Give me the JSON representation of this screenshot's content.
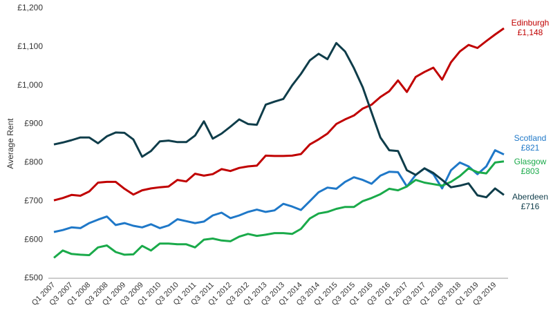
{
  "chart_data": {
    "type": "line",
    "y_axis_label": "Average Rent",
    "categories": [
      "Q1 2007",
      null,
      "Q3 2007",
      null,
      "Q1 2008",
      null,
      "Q3 2008",
      null,
      "Q1 2009",
      null,
      "Q3 2009",
      null,
      "Q1 2010",
      null,
      "Q3 2010",
      null,
      "Q1 2011",
      null,
      "Q3 2011",
      null,
      "Q1 2012",
      null,
      "Q3 2012",
      null,
      "Q1 2013",
      null,
      "Q3 2013",
      null,
      "Q1 2014",
      null,
      "Q3 2014",
      null,
      "Q1 2015",
      null,
      "Q3 2015",
      null,
      "Q1 2016",
      null,
      "Q3 2016",
      null,
      "Q1 2017",
      null,
      "Q3 2017",
      null,
      "Q1 2018",
      null,
      "Q3 2018",
      null,
      "Q1 2019",
      null,
      "Q3 2019",
      null
    ],
    "ylim": [
      500,
      1200
    ],
    "yticks": [
      {
        "value": 500,
        "label": "£500"
      },
      {
        "value": 600,
        "label": "£600"
      },
      {
        "value": 700,
        "label": "£700"
      },
      {
        "value": 800,
        "label": "£800"
      },
      {
        "value": 900,
        "label": "£900"
      },
      {
        "value": 1000,
        "label": "£1,000"
      },
      {
        "value": 1100,
        "label": "£1,100"
      },
      {
        "value": 1200,
        "label": "£1,200"
      }
    ],
    "grid": false,
    "series": [
      {
        "name": "Edinburgh",
        "color": "#c00000",
        "values": [
          702,
          708,
          716,
          714,
          725,
          748,
          750,
          750,
          732,
          717,
          728,
          733,
          736,
          738,
          755,
          751,
          771,
          766,
          770,
          783,
          778,
          786,
          790,
          792,
          818,
          817,
          817,
          818,
          822,
          847,
          860,
          875,
          900,
          912,
          922,
          940,
          950,
          970,
          985,
          1013,
          983,
          1022,
          1035,
          1046,
          1015,
          1060,
          1088,
          1105,
          1097,
          1115,
          1132,
          1148
        ],
        "value_labels": [
          null,
          null,
          null,
          null,
          null,
          null,
          null,
          null,
          null,
          null,
          null,
          null,
          null,
          null,
          null,
          null,
          null,
          null,
          null,
          null,
          null,
          null,
          null,
          null,
          null,
          null,
          null,
          null,
          null,
          null,
          null,
          null,
          null,
          null,
          null,
          null,
          null,
          null,
          null,
          null,
          null,
          null,
          null,
          null,
          null,
          null,
          null,
          null,
          null,
          null,
          null,
          "£1,148"
        ]
      },
      {
        "name": "Scotland",
        "color": "#1f78c8",
        "values": [
          620,
          625,
          632,
          630,
          643,
          652,
          660,
          638,
          643,
          636,
          632,
          640,
          630,
          637,
          653,
          648,
          643,
          647,
          663,
          670,
          656,
          663,
          672,
          678,
          672,
          676,
          693,
          686,
          677,
          700,
          723,
          735,
          732,
          750,
          762,
          755,
          745,
          766,
          776,
          775,
          738,
          768,
          785,
          770,
          733,
          780,
          800,
          790,
          770,
          790,
          832,
          821
        ],
        "value_labels": [
          null,
          null,
          null,
          null,
          null,
          null,
          null,
          null,
          null,
          null,
          null,
          null,
          null,
          null,
          null,
          null,
          null,
          null,
          null,
          null,
          null,
          null,
          null,
          null,
          null,
          null,
          null,
          null,
          null,
          null,
          null,
          null,
          null,
          null,
          null,
          null,
          null,
          null,
          null,
          null,
          null,
          null,
          null,
          null,
          null,
          null,
          null,
          null,
          null,
          null,
          null,
          "£821"
        ]
      },
      {
        "name": "Glasgow",
        "color": "#1aaa4a",
        "values": [
          553,
          572,
          563,
          561,
          560,
          580,
          585,
          568,
          561,
          562,
          584,
          572,
          590,
          590,
          588,
          588,
          580,
          600,
          603,
          598,
          596,
          608,
          615,
          610,
          613,
          617,
          617,
          615,
          628,
          655,
          668,
          672,
          680,
          685,
          685,
          700,
          708,
          718,
          732,
          728,
          738,
          755,
          748,
          744,
          740,
          750,
          765,
          785,
          775,
          772,
          800,
          803
        ],
        "value_labels": [
          null,
          null,
          null,
          null,
          null,
          null,
          null,
          null,
          null,
          null,
          null,
          null,
          null,
          null,
          null,
          null,
          null,
          null,
          null,
          null,
          null,
          null,
          null,
          null,
          null,
          null,
          null,
          null,
          null,
          null,
          null,
          null,
          null,
          null,
          null,
          null,
          null,
          null,
          null,
          null,
          null,
          null,
          null,
          null,
          null,
          null,
          null,
          null,
          null,
          null,
          null,
          "£803"
        ]
      },
      {
        "name": "Aberdeen",
        "color": "#0f3d4a",
        "values": [
          847,
          852,
          858,
          865,
          865,
          850,
          868,
          878,
          877,
          860,
          815,
          830,
          855,
          857,
          853,
          853,
          870,
          907,
          862,
          875,
          893,
          912,
          900,
          898,
          950,
          958,
          965,
          1000,
          1030,
          1065,
          1082,
          1068,
          1110,
          1088,
          1045,
          995,
          930,
          865,
          832,
          830,
          780,
          768,
          785,
          773,
          755,
          736,
          740,
          746,
          715,
          710,
          733,
          716
        ],
        "value_labels": [
          null,
          null,
          null,
          null,
          null,
          null,
          null,
          null,
          null,
          null,
          null,
          null,
          null,
          null,
          null,
          null,
          null,
          null,
          null,
          null,
          null,
          null,
          null,
          null,
          null,
          null,
          null,
          null,
          null,
          null,
          null,
          null,
          null,
          null,
          null,
          null,
          null,
          null,
          null,
          null,
          null,
          null,
          null,
          null,
          null,
          null,
          null,
          null,
          null,
          null,
          null,
          "£716"
        ]
      }
    ]
  }
}
